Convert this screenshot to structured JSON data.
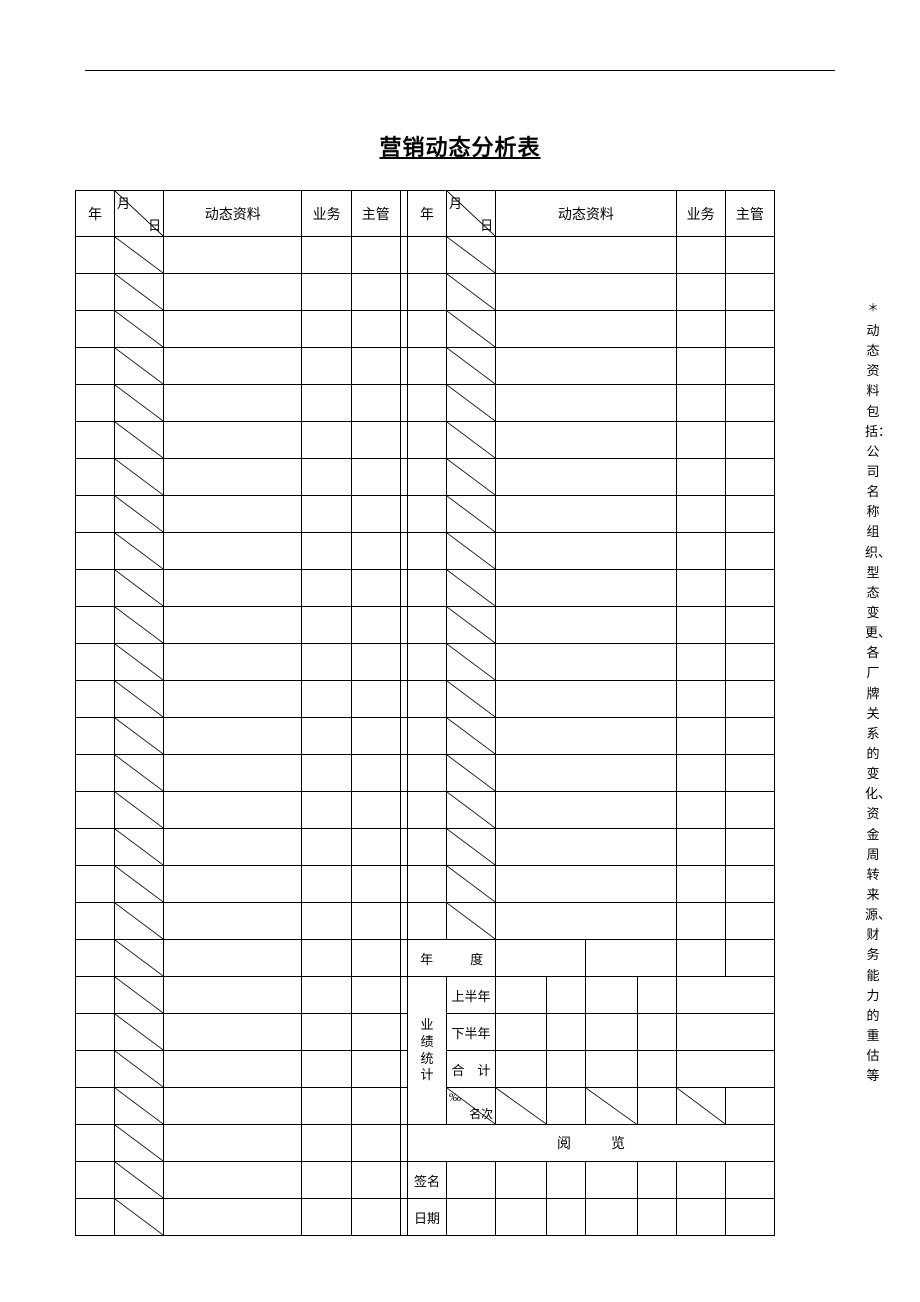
{
  "title": "营销动态分析表",
  "side_note": "动态资料包括：公司名称组织、型态变更、各厂牌关系的变化、资金周转来源、财务能力的重估等",
  "headers": {
    "year": "年",
    "month": "月",
    "day": "日",
    "info": "动态资料",
    "biz": "业务",
    "supervisor": "主管"
  },
  "labels": {
    "year_period": "年　度",
    "perf": "业绩统计",
    "first_half": "上半年",
    "second_half": "下半年",
    "total": "合　计",
    "permil": "‰",
    "rank": "名次",
    "review": "阅览",
    "signature": "签名",
    "date": "日期"
  },
  "left_rows": 27,
  "right_plain_rows": 19,
  "colors": {
    "line": "#000000",
    "bg": "#ffffff",
    "text": "#000000"
  },
  "fonts": {
    "title_family": "SimHei",
    "body_family": "SimSun",
    "title_size_pt": 16,
    "body_size_pt": 10
  }
}
